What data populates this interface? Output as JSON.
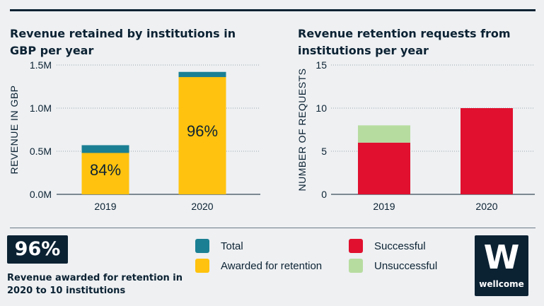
{
  "colors": {
    "total": "#1a7f93",
    "awarded": "#ffc20e",
    "successful": "#e0102e",
    "unsuccessful": "#b7dca0",
    "navy": "#0b2233"
  },
  "chart_data": [
    {
      "type": "bar",
      "stacked": true,
      "title": "Revenue retained by institutions in GBP per year",
      "ylabel": "REVENUE  IN GBP",
      "categories": [
        "2019",
        "2020"
      ],
      "yticks": [
        "0.0M",
        "0.5M",
        "1.0M",
        "1.5M"
      ],
      "ylim": [
        0,
        1.5
      ],
      "series": [
        {
          "name": "Awarded for retention",
          "values": [
            0.48,
            1.36
          ]
        },
        {
          "name": "Total",
          "values": [
            0.57,
            1.42
          ]
        }
      ],
      "bar_labels": [
        "84%",
        "96%"
      ],
      "grid": true
    },
    {
      "type": "bar",
      "stacked": true,
      "title": "Revenue retention requests from institutions per year",
      "ylabel": "NUMBER OF REQUESTS",
      "categories": [
        "2019",
        "2020"
      ],
      "yticks": [
        "0",
        "5",
        "10",
        "15"
      ],
      "ylim": [
        0,
        15
      ],
      "series": [
        {
          "name": "Successful",
          "values": [
            6,
            10
          ]
        },
        {
          "name": "Unsuccessful",
          "values": [
            2,
            0
          ]
        }
      ],
      "grid": true
    }
  ],
  "kpi": {
    "value": "96%",
    "caption": "Revenue awarded for retention in 2020 to 10 institutions"
  },
  "legend": {
    "total": "Total",
    "awarded": "Awarded for retention",
    "successful": "Successful",
    "unsuccessful": "Unsuccessful"
  },
  "logo": {
    "mark": "W",
    "wordmark": "wellcome"
  }
}
